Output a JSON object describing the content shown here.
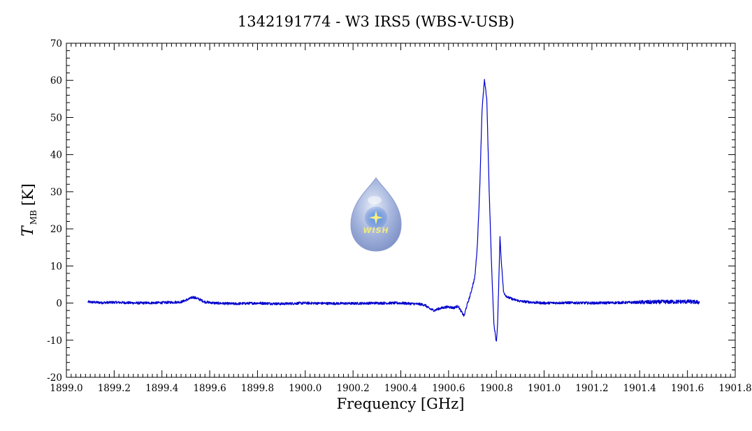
{
  "chart_data": {
    "type": "line",
    "title": "1342191774 - W3 IRS5 (WBS-V-USB)",
    "xlabel": "Frequency [GHz]",
    "ylabel": {
      "symbol": "T",
      "subscript": "MB",
      "unit": "[K]"
    },
    "xlim": [
      1899.0,
      1901.8
    ],
    "ylim": [
      -20,
      70
    ],
    "x_ticks": [
      "1899.0",
      "1899.2",
      "1899.4",
      "1899.6",
      "1899.8",
      "1900.0",
      "1900.2",
      "1900.4",
      "1900.6",
      "1900.8",
      "1901.0",
      "1901.2",
      "1901.4",
      "1901.6",
      "1901.8"
    ],
    "y_ticks": [
      "-20",
      "-10",
      "0",
      "10",
      "20",
      "30",
      "40",
      "50",
      "60",
      "70"
    ],
    "line_color": "#0000cc",
    "grid": false,
    "logo": {
      "name": "wish-logo",
      "text": "WISH"
    },
    "series": [
      {
        "x": [
          1899.09,
          1899.15,
          1899.2,
          1899.3,
          1899.4,
          1899.48,
          1899.51,
          1899.53,
          1899.55,
          1899.58,
          1899.62,
          1899.7,
          1899.8,
          1899.9,
          1900.0,
          1900.1,
          1900.2,
          1900.3,
          1900.4,
          1900.48,
          1900.5,
          1900.52,
          1900.54,
          1900.56,
          1900.58,
          1900.6,
          1900.62,
          1900.64,
          1900.655,
          1900.665,
          1900.675,
          1900.69,
          1900.7,
          1900.71,
          1900.72,
          1900.73,
          1900.74,
          1900.75,
          1900.76,
          1900.77,
          1900.78,
          1900.79,
          1900.8,
          1900.805,
          1900.81,
          1900.815,
          1900.82,
          1900.83,
          1900.84,
          1900.85,
          1900.87,
          1900.9,
          1900.95,
          1901.0,
          1901.1,
          1901.2,
          1901.3,
          1901.4,
          1901.5,
          1901.6,
          1901.65
        ],
        "y": [
          0.3,
          0.1,
          0.2,
          0.0,
          0.1,
          0.3,
          1.0,
          1.6,
          1.2,
          0.3,
          0.0,
          -0.2,
          0.0,
          -0.2,
          0.0,
          -0.1,
          -0.1,
          0.0,
          0.0,
          -0.3,
          -0.5,
          -1.5,
          -2.0,
          -1.5,
          -1.2,
          -1.0,
          -1.3,
          -0.8,
          -2.5,
          -3.5,
          -1.0,
          2.0,
          4.5,
          7.0,
          15.0,
          30.0,
          52.0,
          60.0,
          55.0,
          30.0,
          10.0,
          -6.0,
          -10.5,
          -6.0,
          5.0,
          18.0,
          12.0,
          3.0,
          2.0,
          1.5,
          1.0,
          0.5,
          0.2,
          0.0,
          0.1,
          0.0,
          0.1,
          0.2,
          0.3,
          0.4,
          0.2
        ]
      }
    ]
  }
}
